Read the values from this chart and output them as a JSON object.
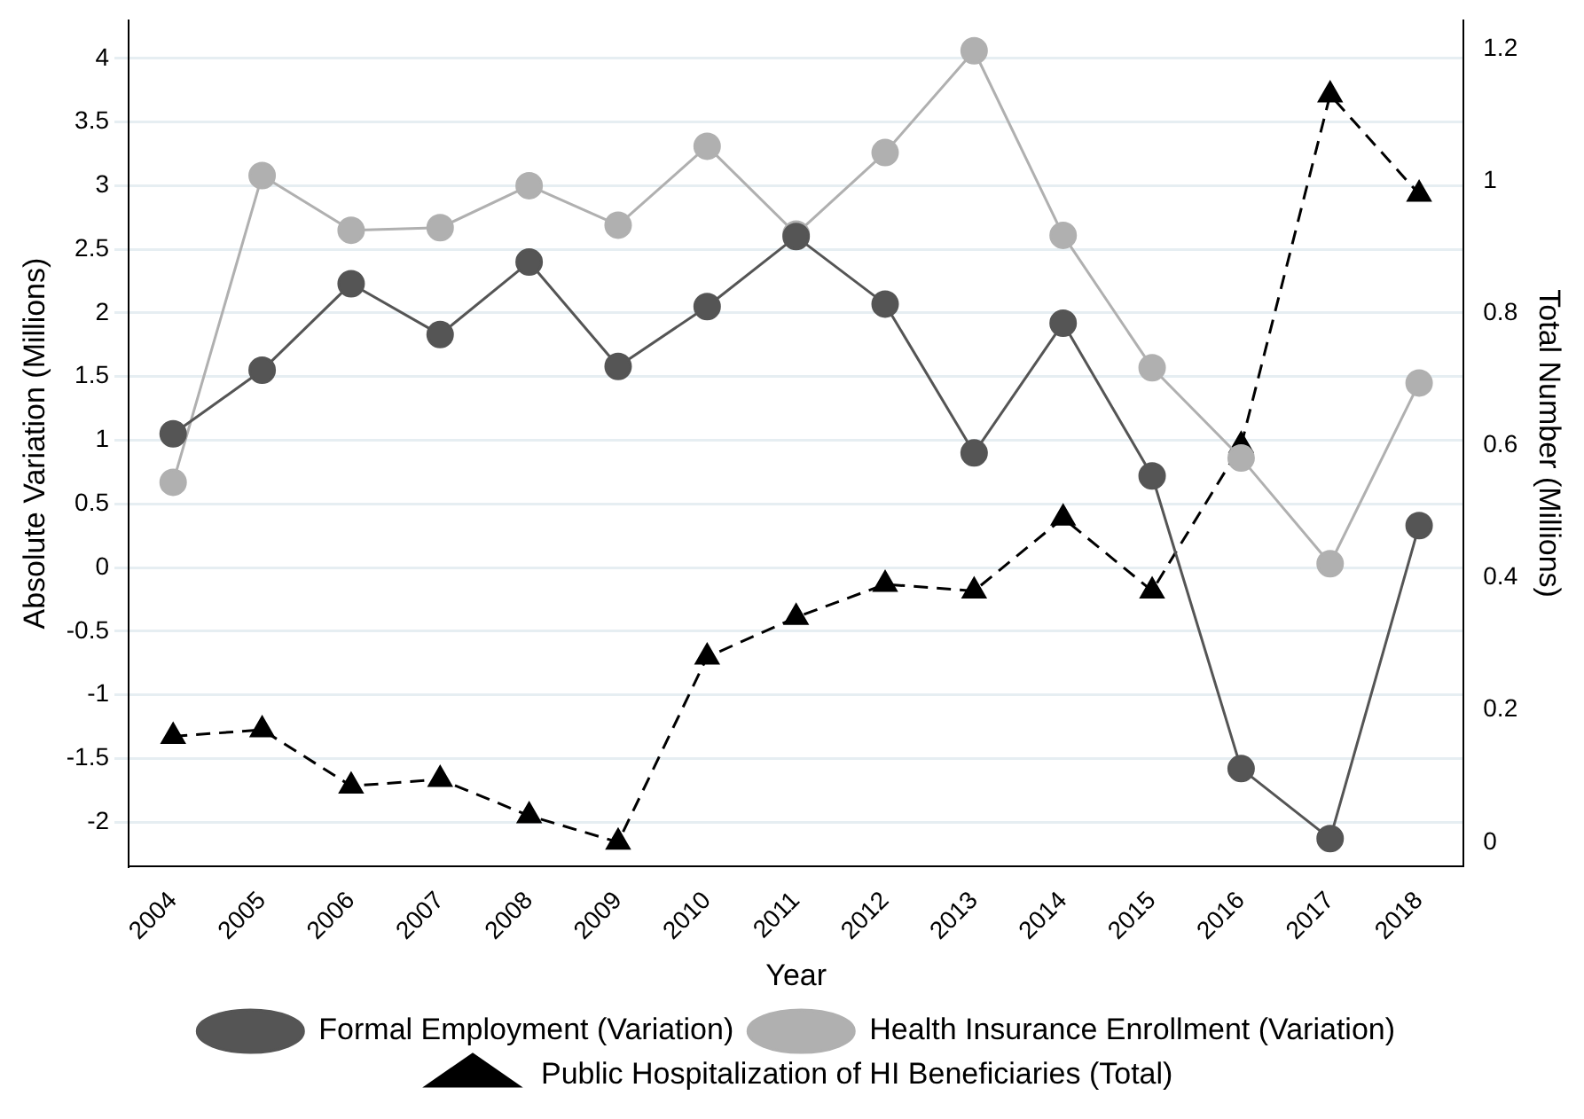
{
  "chart_data": {
    "type": "line",
    "xlabel": "Year",
    "ylabel": "Absolute Variation (Millions)",
    "y2label": "Total Number (Millions)",
    "categories": [
      "2004",
      "2005",
      "2006",
      "2007",
      "2008",
      "2009",
      "2010",
      "2011",
      "2012",
      "2013",
      "2014",
      "2015",
      "2016",
      "2017",
      "2018"
    ],
    "series": [
      {
        "name": "Formal Employment (Variation)",
        "color": "#555555",
        "marker": "circle",
        "line_style": "solid",
        "values": [
          1.05,
          1.55,
          2.23,
          1.83,
          2.4,
          1.58,
          2.05,
          2.6,
          2.07,
          0.9,
          1.92,
          0.72,
          -1.58,
          -2.13,
          0.33
        ]
      },
      {
        "name": "Health Insurance Enrollment (Variation)",
        "color": "#b0b0b0",
        "marker": "circle",
        "line_style": "solid",
        "values": [
          0.67,
          3.08,
          2.65,
          2.67,
          3.0,
          2.69,
          3.31,
          2.62,
          3.26,
          4.06,
          2.61,
          1.57,
          0.86,
          0.03,
          1.45
        ]
      },
      {
        "name": "Public Hospitalization of HI Beneficiaries (Total)",
        "color": "#000000",
        "marker": "triangle",
        "line_style": "dashed",
        "axis": "y2",
        "values": [
          0.16,
          0.17,
          0.085,
          0.095,
          0.04,
          0,
          0.28,
          0.34,
          0.39,
          0.38,
          0.49,
          0.38,
          0.6,
          1.13,
          0.98
        ]
      }
    ],
    "ylim": [
      -2.35,
      4.3
    ],
    "yticks": [
      -2,
      -1.5,
      -1,
      -0.5,
      0,
      0.5,
      1,
      1.5,
      2,
      2.5,
      3,
      3.5,
      4
    ],
    "y2lim": [
      -0.037,
      1.243
    ],
    "y2ticks": [
      0,
      0.2,
      0.4,
      0.6,
      0.8,
      1,
      1.2
    ],
    "grid": "y",
    "legend": "bottom"
  }
}
